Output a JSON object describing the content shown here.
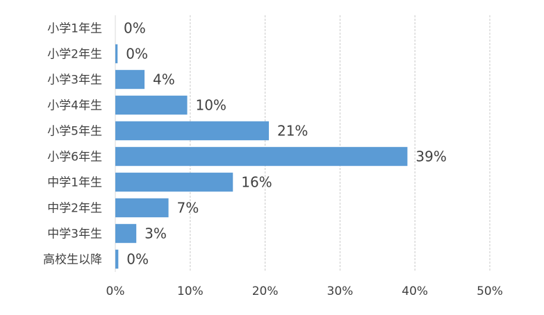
{
  "chart_data": {
    "type": "bar",
    "orientation": "horizontal",
    "title": "",
    "xlabel": "",
    "ylabel": "",
    "categories": [
      "小学1年生",
      "小学2年生",
      "小学3年生",
      "小学4年生",
      "小学5年生",
      "小学6年生",
      "中学1年生",
      "中学2年生",
      "中学3年生",
      "高校生以降"
    ],
    "values": [
      0,
      0.3,
      3.9,
      9.6,
      20.5,
      39.0,
      15.7,
      7.1,
      2.8,
      0.4
    ],
    "data_labels": [
      "0%",
      "0%",
      "4%",
      "10%",
      "21%",
      "39%",
      "16%",
      "7%",
      "3%",
      "0%"
    ],
    "xlim": [
      0,
      50
    ],
    "xticks": [
      0,
      10,
      20,
      30,
      40,
      50
    ],
    "xtick_labels": [
      "0%",
      "10%",
      "20%",
      "30%",
      "40%",
      "50%"
    ],
    "grid": "vertical",
    "legend": "none",
    "colors": {
      "bar": "#5B9BD5",
      "grid": "#C8C8C8",
      "text": "#404040"
    }
  }
}
